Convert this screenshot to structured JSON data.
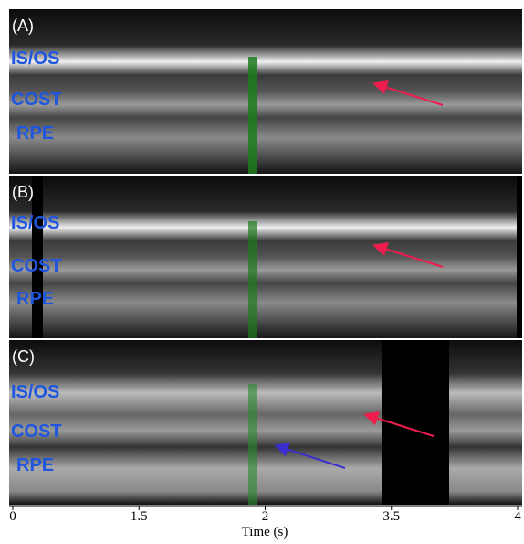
{
  "panels": [
    {
      "label": "(A)",
      "layers": [
        "IS/OS",
        "COST",
        "RPE"
      ]
    },
    {
      "label": "(B)",
      "layers": [
        "IS/OS",
        "COST",
        "RPE"
      ]
    },
    {
      "label": "(C)",
      "layers": [
        "IS/OS",
        "COST",
        "RPE"
      ]
    }
  ],
  "axis": {
    "title": "Time (s)",
    "ticks": [
      "0",
      "1.5",
      "2",
      "3.5",
      "4"
    ]
  }
}
